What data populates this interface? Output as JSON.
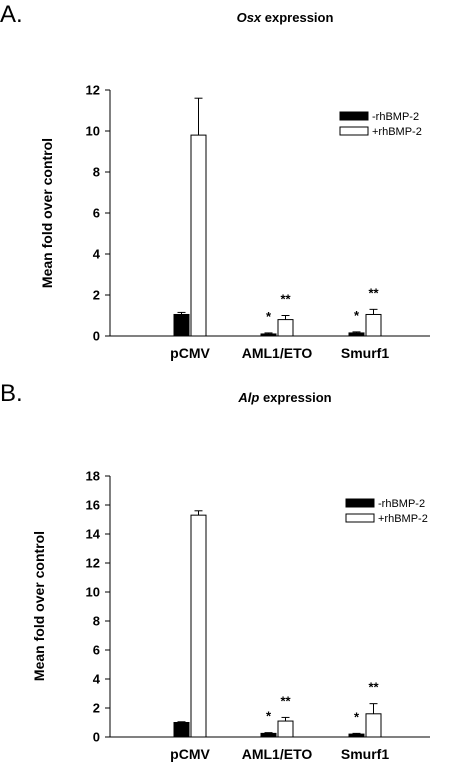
{
  "chart_data": [
    {
      "type": "bar",
      "panel": "A.",
      "title_italic": "Osx",
      "title_rest": " expression",
      "ylabel": "Mean fold over control",
      "xlabel": "",
      "ylim": [
        0,
        12
      ],
      "yticks": [
        0,
        2,
        4,
        6,
        8,
        10,
        12
      ],
      "categories": [
        "pCMV",
        "AML1/ETO",
        "Smurf1"
      ],
      "series": [
        {
          "name": "-rhBMP-2",
          "fill": "#000000",
          "values": [
            1.05,
            0.1,
            0.15
          ],
          "errors": [
            0.1,
            0.05,
            0.05
          ]
        },
        {
          "name": "+rhBMP-2",
          "fill": "#ffffff",
          "values": [
            9.8,
            0.8,
            1.05
          ],
          "errors": [
            1.8,
            0.2,
            0.25
          ]
        }
      ],
      "annotations": [
        {
          "category": 1,
          "series": 0,
          "text": "*"
        },
        {
          "category": 1,
          "series": 1,
          "text": "**"
        },
        {
          "category": 2,
          "series": 0,
          "text": "*"
        },
        {
          "category": 2,
          "series": 1,
          "text": "**"
        }
      ],
      "legend_position": "top-right",
      "grid": false
    },
    {
      "type": "bar",
      "panel": "B.",
      "title_italic": "Alp",
      "title_rest": " expression",
      "ylabel": "Mean fold over control",
      "xlabel": "",
      "ylim": [
        0,
        18
      ],
      "yticks": [
        0,
        2,
        4,
        6,
        8,
        10,
        12,
        14,
        16,
        18
      ],
      "categories": [
        "pCMV",
        "AML1/ETO",
        "Smurf1"
      ],
      "series": [
        {
          "name": "-rhBMP-2",
          "fill": "#000000",
          "values": [
            1.0,
            0.25,
            0.2
          ],
          "errors": [
            0.05,
            0.05,
            0.05
          ]
        },
        {
          "name": "+rhBMP-2",
          "fill": "#ffffff",
          "values": [
            15.3,
            1.1,
            1.6
          ],
          "errors": [
            0.3,
            0.25,
            0.7
          ]
        }
      ],
      "annotations": [
        {
          "category": 1,
          "series": 0,
          "text": "*"
        },
        {
          "category": 1,
          "series": 1,
          "text": "**"
        },
        {
          "category": 2,
          "series": 0,
          "text": "*"
        },
        {
          "category": 2,
          "series": 1,
          "text": "**"
        }
      ],
      "legend_position": "top-right",
      "grid": false
    }
  ]
}
